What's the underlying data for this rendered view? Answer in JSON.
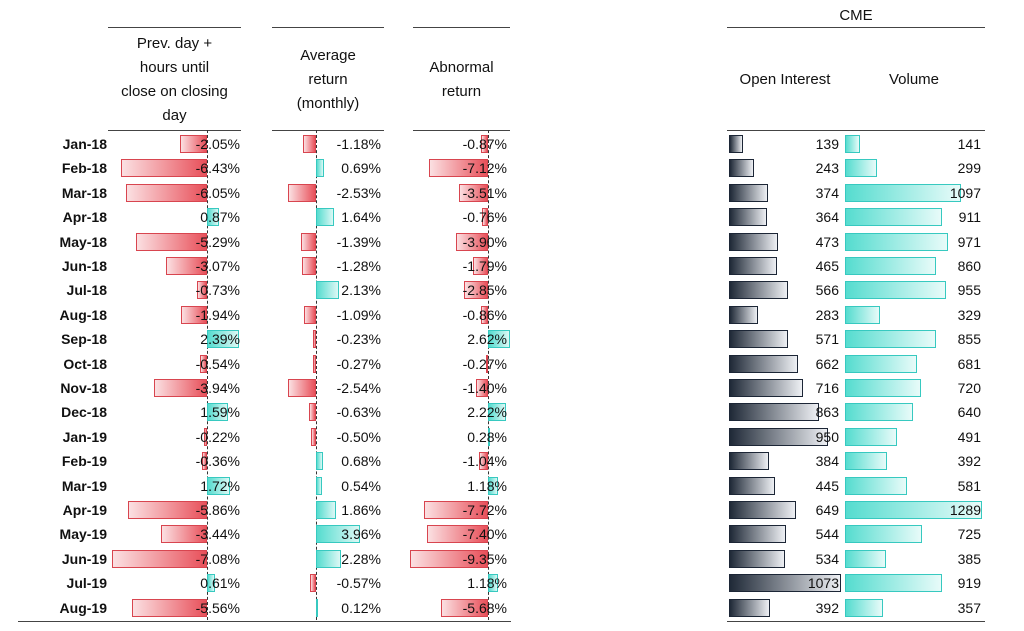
{
  "headers": {
    "col1": [
      "Prev. day +",
      "hours until",
      "close on closing",
      "day"
    ],
    "col2": [
      "Average",
      "return",
      "(monthly)"
    ],
    "col3": [
      "Abnormal",
      "return"
    ],
    "cme_group": "CME",
    "col4": "Open Interest",
    "col5": "Volume"
  },
  "colors": {
    "negative": "#e8505a",
    "positive": "#55dccf",
    "open_interest": "#1f2937",
    "volume": "#55dccf"
  },
  "chart_data": {
    "type": "table",
    "months": [
      "Jan-18",
      "Feb-18",
      "Mar-18",
      "Apr-18",
      "May-18",
      "Jun-18",
      "Jul-18",
      "Aug-18",
      "Sep-18",
      "Oct-18",
      "Nov-18",
      "Dec-18",
      "Jan-19",
      "Feb-19",
      "Mar-19",
      "Apr-19",
      "May-19",
      "Jun-19",
      "Jul-19",
      "Aug-19"
    ],
    "series": [
      {
        "name": "Prev. day + hours until close on closing day",
        "values": [
          -2.05,
          -6.43,
          -6.05,
          0.87,
          -5.29,
          -3.07,
          -0.73,
          -1.94,
          2.39,
          -0.54,
          -3.94,
          1.59,
          -0.22,
          -0.36,
          1.72,
          -5.86,
          -3.44,
          -7.08,
          0.61,
          -5.56
        ],
        "labels": [
          "-2.05%",
          "-6.43%",
          "-6.05%",
          "0.87%",
          "-5.29%",
          "-3.07%",
          "-0.73%",
          "-1.94%",
          "2.39%",
          "-0.54%",
          "-3.94%",
          "1.59%",
          "-0.22%",
          "-0.36%",
          "1.72%",
          "-5.86%",
          "-3.44%",
          "-7.08%",
          "0.61%",
          "-5.56%"
        ]
      },
      {
        "name": "Average return (monthly)",
        "values": [
          -1.18,
          0.69,
          -2.53,
          1.64,
          -1.39,
          -1.28,
          2.13,
          -1.09,
          -0.23,
          -0.27,
          -2.54,
          -0.63,
          -0.5,
          0.68,
          0.54,
          1.86,
          3.96,
          2.28,
          -0.57,
          0.12
        ],
        "labels": [
          "-1.18%",
          "0.69%",
          "-2.53%",
          "1.64%",
          "-1.39%",
          "-1.28%",
          "2.13%",
          "-1.09%",
          "-0.23%",
          "-0.27%",
          "-2.54%",
          "-0.63%",
          "-0.50%",
          "0.68%",
          "0.54%",
          "1.86%",
          "3.96%",
          "2.28%",
          "-0.57%",
          "0.12%"
        ]
      },
      {
        "name": "Abnormal return",
        "values": [
          -0.87,
          -7.12,
          -3.51,
          -0.76,
          -3.9,
          -1.79,
          -2.85,
          -0.86,
          2.62,
          -0.27,
          -1.4,
          2.22,
          0.28,
          -1.04,
          1.18,
          -7.72,
          -7.4,
          -9.35,
          1.18,
          -5.68
        ],
        "labels": [
          "-0.87%",
          "-7.12%",
          "-3.51%",
          "-0.76%",
          "-3.90%",
          "-1.79%",
          "-2.85%",
          "-0.86%",
          "2.62%",
          "-0.27%",
          "-1.40%",
          "2.22%",
          "0.28%",
          "-1.04%",
          "1.18%",
          "-7.72%",
          "-7.40%",
          "-9.35%",
          "1.18%",
          "-5.68%"
        ]
      },
      {
        "name": "Open Interest",
        "values": [
          139,
          243,
          374,
          364,
          473,
          465,
          566,
          283,
          571,
          662,
          716,
          863,
          950,
          384,
          445,
          649,
          544,
          534,
          1073,
          392
        ],
        "labels": [
          "139",
          "243",
          "374",
          "364",
          "473",
          "465",
          "566",
          "283",
          "571",
          "662",
          "716",
          "863",
          "950",
          "384",
          "445",
          "649",
          "544",
          "534",
          "1073",
          "392"
        ]
      },
      {
        "name": "Volume",
        "values": [
          141,
          299,
          1097,
          911,
          971,
          860,
          955,
          329,
          855,
          681,
          720,
          640,
          491,
          392,
          581,
          1289,
          725,
          385,
          919,
          357
        ],
        "labels": [
          "141",
          "299",
          "1097",
          "911",
          "971",
          "860",
          "955",
          "329",
          "855",
          "681",
          "720",
          "640",
          "491",
          "392",
          "581",
          "1289",
          "725",
          "385",
          "919",
          "357"
        ]
      }
    ]
  }
}
